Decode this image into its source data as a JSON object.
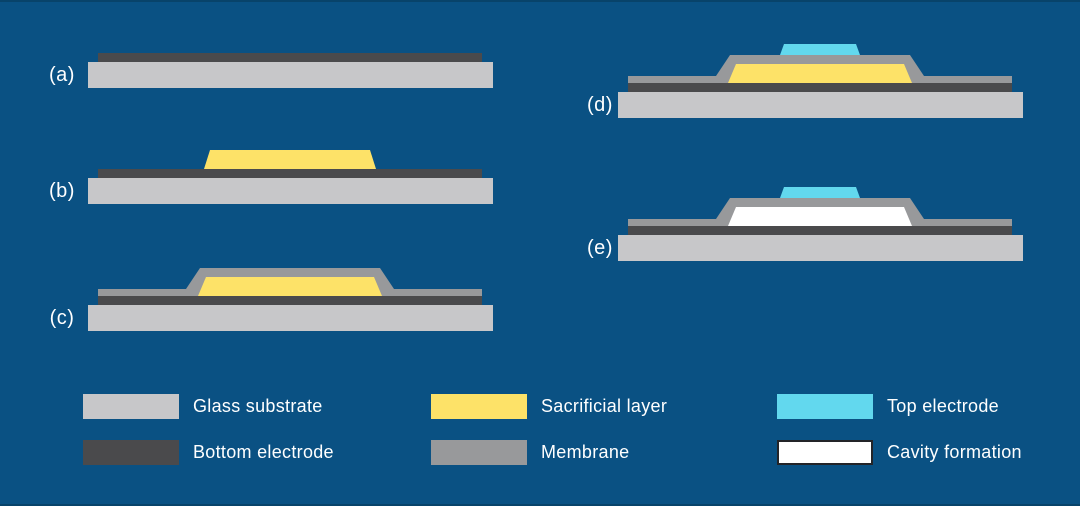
{
  "colors": {
    "background": "#0a5183",
    "edge_line": "#08436a",
    "glass": "#c7c7c9",
    "bottom_electrode": "#4a4a4c",
    "sacrificial": "#fde268",
    "membrane": "#98999b",
    "top_electrode": "#62d8ee",
    "cavity": "#ffffff",
    "cavity_border": "#232428",
    "text": "#ffffff"
  },
  "steps": [
    {
      "label": "(a)",
      "layers": [
        "substrate",
        "bottom_electrode"
      ]
    },
    {
      "label": "(b)",
      "layers": [
        "substrate",
        "bottom_electrode",
        "sacrificial_flat"
      ]
    },
    {
      "label": "(c)",
      "layers": [
        "substrate",
        "bottom_electrode",
        "membrane",
        "sacrificial_raised"
      ]
    },
    {
      "label": "(d)",
      "layers": [
        "substrate",
        "bottom_electrode",
        "membrane",
        "sacrificial_raised",
        "top_electrode"
      ]
    },
    {
      "label": "(e)",
      "layers": [
        "substrate",
        "bottom_electrode",
        "membrane",
        "cavity",
        "top_electrode"
      ]
    }
  ],
  "legend": {
    "items": [
      {
        "label": "Glass substrate",
        "color_key": "glass",
        "bordered": false
      },
      {
        "label": "Bottom electrode",
        "color_key": "bottom_electrode",
        "bordered": false
      },
      {
        "label": "Sacrificial layer",
        "color_key": "sacrificial",
        "bordered": false
      },
      {
        "label": "Membrane",
        "color_key": "membrane",
        "bordered": false
      },
      {
        "label": "Top electrode",
        "color_key": "top_electrode",
        "bordered": false
      },
      {
        "label": "Cavity formation",
        "color_key": "cavity",
        "bordered": true
      }
    ]
  }
}
